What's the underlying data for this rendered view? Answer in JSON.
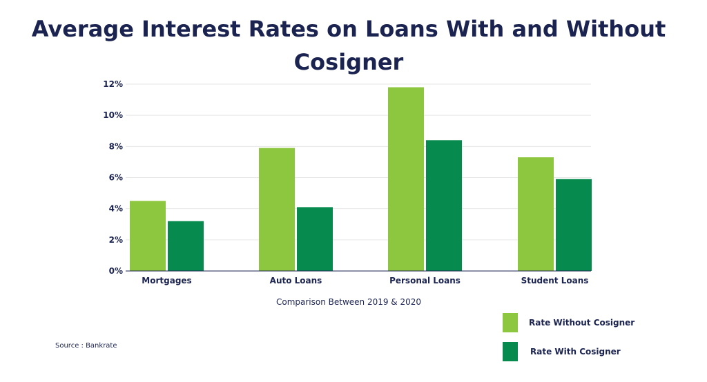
{
  "chart_data": {
    "type": "bar",
    "title": "Average Interest Rates on Loans With and Without Cosigner",
    "xlabel": "Comparison Between 2019 & 2020",
    "ylabel": "",
    "categories": [
      "Mortgages",
      "Auto Loans",
      "Personal Loans",
      "Student Loans"
    ],
    "series": [
      {
        "name": "Rate Without Cosigner",
        "values": [
          4.5,
          7.9,
          11.8,
          7.3
        ],
        "color": "#8dc63f"
      },
      {
        "name": "Rate With Cosigner",
        "values": [
          3.2,
          4.1,
          8.4,
          5.9
        ],
        "color": "#068a4d"
      }
    ],
    "ylim": [
      0,
      12
    ],
    "yticks": [
      "0%",
      "2%",
      "4%",
      "6%",
      "8%",
      "10%",
      "12%"
    ],
    "grid": true,
    "legend_position": "bottom-right"
  },
  "source": "Source : Bankrate",
  "colors": {
    "title": "#1b2350",
    "light_green": "#8dc63f",
    "dark_green": "#068a4d",
    "grid": "#e6e6e6"
  }
}
